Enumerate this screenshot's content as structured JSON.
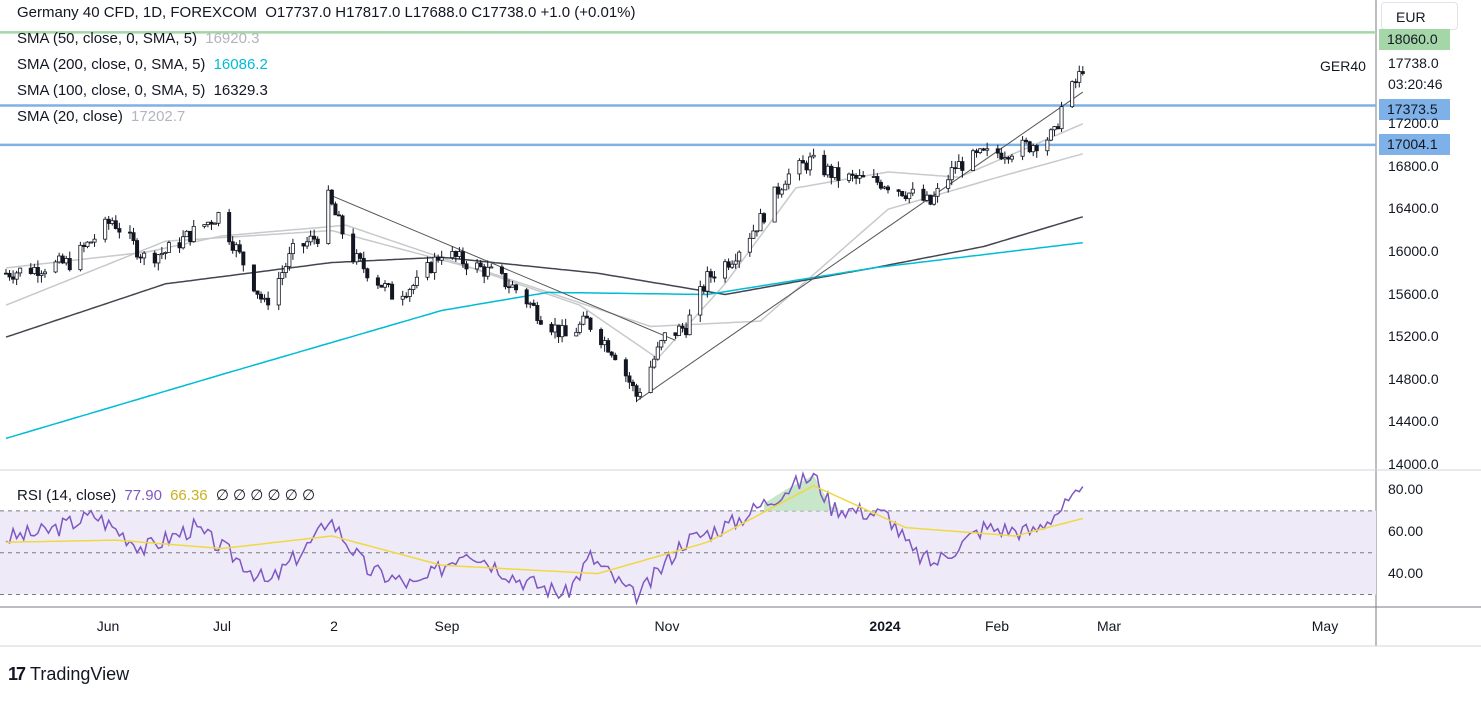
{
  "header": {
    "symbol": "Germany 40 CFD, 1D, FOREXCOM",
    "ohlc": "O17737.0  H17817.0  L17688.0  C17738.0  +1.0 (+0.01%)",
    "currency": "EUR"
  },
  "indicators": [
    {
      "label": "SMA (50, close, 0, SMA, 5)",
      "value": "16920.3",
      "color": "#b2b5be"
    },
    {
      "label": "SMA (200, close, 0, SMA, 5)",
      "value": "16086.2",
      "color": "#00bcd4"
    },
    {
      "label": "SMA (100, close, 0, SMA, 5)",
      "value": "16329.3",
      "color": "#131722"
    },
    {
      "label": "SMA (20, close)",
      "value": "17202.7",
      "color": "#b2b5be"
    }
  ],
  "rsi_legend": {
    "label": "RSI (14, close)",
    "value": "77.90",
    "ma_value": "66.36",
    "extras": "∅ ∅ ∅ ∅ ∅ ∅"
  },
  "price_labels": {
    "ticker": "GER40",
    "last": "17738.0",
    "countdown": "03:20:46",
    "level_top": "18060.0",
    "level_1": "17373.5",
    "level_2": "17004.1"
  },
  "colors": {
    "level_lines": "#7eb1e8",
    "top_line": "#a5d6a7",
    "sma200": "#00bcd4",
    "sma100": "#434651",
    "sma_light": "#c8c9cd",
    "rsi": "#7e57c2",
    "rsi_ma": "#f0d843",
    "rsi_band": "#efeaf8"
  },
  "brand": "TradingView",
  "chart_data": {
    "type": "candlestick",
    "title": "Germany 40 CFD, 1D, FOREXCOM",
    "y_axis_ticks": [
      14000.0,
      14400.0,
      14800.0,
      15200.0,
      15600.0,
      16000.0,
      16400.0,
      16800.0,
      17200.0
    ],
    "y_axis_tick_labels": [
      "14000.0",
      "14400.0",
      "14800.0",
      "15200.0",
      "15600.0",
      "16000.0",
      "16400.0",
      "16800.0",
      "17200.0"
    ],
    "ylim": [
      14000,
      18060
    ],
    "x_axis_labels": [
      "Jun",
      "Jul",
      "2",
      "Sep",
      "Nov",
      "2024",
      "Feb",
      "Mar",
      "May"
    ],
    "horizontal_levels": [
      18060.0,
      17373.5,
      17004.1
    ],
    "trendlines": [
      {
        "name": "falling",
        "points": [
          [
            "2023-07-31",
            16540
          ],
          [
            "2023-11-06",
            15170
          ]
        ]
      },
      {
        "name": "rising",
        "points": [
          [
            "2023-10-26",
            14600
          ],
          [
            "2024-02-29",
            17500
          ]
        ]
      }
    ],
    "close_path": [
      [
        "2023-05-01",
        15800
      ],
      [
        "2023-05-19",
        15900
      ],
      [
        "2023-05-31",
        16300
      ],
      [
        "2023-06-09",
        15950
      ],
      [
        "2023-06-15",
        16000
      ],
      [
        "2023-06-30",
        16350
      ],
      [
        "2023-07-07",
        15900
      ],
      [
        "2023-07-13",
        15500
      ],
      [
        "2023-07-21",
        16000
      ],
      [
        "2023-07-28",
        16150
      ],
      [
        "2023-07-31",
        16500
      ],
      [
        "2023-08-07",
        15950
      ],
      [
        "2023-08-18",
        15600
      ],
      [
        "2023-08-25",
        15700
      ],
      [
        "2023-09-01",
        16000
      ],
      [
        "2023-09-08",
        15900
      ],
      [
        "2023-09-15",
        15800
      ],
      [
        "2023-09-22",
        15650
      ],
      [
        "2023-09-29",
        15400
      ],
      [
        "2023-10-06",
        15200
      ],
      [
        "2023-10-12",
        15350
      ],
      [
        "2023-10-20",
        15050
      ],
      [
        "2023-10-26",
        14650
      ],
      [
        "2023-11-03",
        15200
      ],
      [
        "2023-11-09",
        15300
      ],
      [
        "2023-11-15",
        15750
      ],
      [
        "2023-11-22",
        15950
      ],
      [
        "2023-11-30",
        16300
      ],
      [
        "2023-12-07",
        16700
      ],
      [
        "2023-12-14",
        16850
      ],
      [
        "2023-12-22",
        16700
      ],
      [
        "2024-01-04",
        16650
      ],
      [
        "2024-01-11",
        16550
      ],
      [
        "2024-01-17",
        16450
      ],
      [
        "2024-01-24",
        16800
      ],
      [
        "2024-01-31",
        16900
      ],
      [
        "2024-02-08",
        16950
      ],
      [
        "2024-02-14",
        17000
      ],
      [
        "2024-02-21",
        17100
      ],
      [
        "2024-02-23",
        17350
      ],
      [
        "2024-02-28",
        17650
      ],
      [
        "2024-02-29",
        17738
      ]
    ],
    "sma200": [
      [
        "2023-05-01",
        14250
      ],
      [
        "2023-07-01",
        14850
      ],
      [
        "2023-09-01",
        15450
      ],
      [
        "2023-10-01",
        15620
      ],
      [
        "2023-11-15",
        15600
      ],
      [
        "2024-01-01",
        15850
      ],
      [
        "2024-02-29",
        16086.2
      ]
    ],
    "sma100": [
      [
        "2023-05-01",
        15200
      ],
      [
        "2023-06-15",
        15700
      ],
      [
        "2023-08-01",
        15900
      ],
      [
        "2023-09-01",
        15950
      ],
      [
        "2023-10-15",
        15800
      ],
      [
        "2023-11-20",
        15600
      ],
      [
        "2024-01-01",
        15850
      ],
      [
        "2024-02-01",
        16050
      ],
      [
        "2024-02-29",
        16329.3
      ]
    ],
    "sma50": [
      [
        "2023-05-01",
        15500
      ],
      [
        "2023-06-15",
        16100
      ],
      [
        "2023-08-01",
        16200
      ],
      [
        "2023-09-15",
        15800
      ],
      [
        "2023-10-30",
        15300
      ],
      [
        "2023-11-30",
        15350
      ],
      [
        "2024-01-05",
        16400
      ],
      [
        "2024-02-05",
        16700
      ],
      [
        "2024-02-29",
        16920.3
      ]
    ],
    "sma20": [
      [
        "2023-05-01",
        15850
      ],
      [
        "2023-06-10",
        16000
      ],
      [
        "2023-07-01",
        16150
      ],
      [
        "2023-08-05",
        16250
      ],
      [
        "2023-09-05",
        15900
      ],
      [
        "2023-10-10",
        15500
      ],
      [
        "2023-11-01",
        15000
      ],
      [
        "2023-11-20",
        15700
      ],
      [
        "2023-12-10",
        16600
      ],
      [
        "2024-01-05",
        16750
      ],
      [
        "2024-01-25",
        16700
      ],
      [
        "2024-02-15",
        17000
      ],
      [
        "2024-02-29",
        17202.7
      ]
    ],
    "rsi": {
      "ylim": [
        25,
        90
      ],
      "levels": [
        70,
        50,
        30
      ],
      "tick_labels": [
        "80.00",
        "60.00",
        "40.00"
      ],
      "ticks": [
        80,
        60,
        40
      ],
      "series": [
        [
          "2023-05-01",
          57
        ],
        [
          "2023-05-12",
          60
        ],
        [
          "2023-05-26",
          68
        ],
        [
          "2023-06-09",
          52
        ],
        [
          "2023-06-23",
          62
        ],
        [
          "2023-07-07",
          45
        ],
        [
          "2023-07-14",
          35
        ],
        [
          "2023-07-28",
          58
        ],
        [
          "2023-07-31",
          67
        ],
        [
          "2023-08-11",
          42
        ],
        [
          "2023-08-25",
          34
        ],
        [
          "2023-09-08",
          52
        ],
        [
          "2023-09-22",
          38
        ],
        [
          "2023-10-06",
          30
        ],
        [
          "2023-10-13",
          48
        ],
        [
          "2023-10-26",
          28
        ],
        [
          "2023-11-08",
          55
        ],
        [
          "2023-11-22",
          64
        ],
        [
          "2023-12-07",
          80
        ],
        [
          "2023-12-15",
          87
        ],
        [
          "2023-12-20",
          72
        ],
        [
          "2024-01-05",
          68
        ],
        [
          "2024-01-12",
          50
        ],
        [
          "2024-01-18",
          45
        ],
        [
          "2024-02-01",
          62
        ],
        [
          "2024-02-15",
          60
        ],
        [
          "2024-02-22",
          70
        ],
        [
          "2024-02-29",
          77.9
        ]
      ],
      "ma": [
        [
          "2023-05-01",
          55
        ],
        [
          "2023-06-01",
          56
        ],
        [
          "2023-07-01",
          52
        ],
        [
          "2023-08-01",
          58
        ],
        [
          "2023-09-01",
          44
        ],
        [
          "2023-10-15",
          40
        ],
        [
          "2023-11-15",
          55
        ],
        [
          "2023-12-15",
          82
        ],
        [
          "2024-01-10",
          62
        ],
        [
          "2024-02-10",
          58
        ],
        [
          "2024-02-29",
          66.36
        ]
      ]
    }
  }
}
